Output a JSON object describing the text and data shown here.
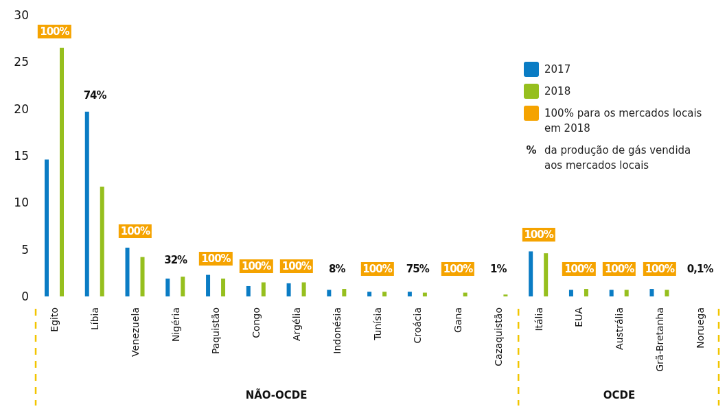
{
  "chart_data": {
    "type": "bar",
    "categories": [
      "Egito",
      "Líbia",
      "Venezuela",
      "Nigéria",
      "Paquistão",
      "Congo",
      "Argélia",
      "Indonésia",
      "Tunísia",
      "Croácia",
      "Gana",
      "Cazaquistão",
      "Itália",
      "EUA",
      "Austrália",
      "Grã-Bretanha",
      "Noruega"
    ],
    "series": [
      {
        "name": "2017",
        "color": "#0a7cc4",
        "values": [
          14.6,
          19.7,
          5.2,
          1.9,
          2.3,
          1.1,
          1.4,
          0.7,
          0.5,
          0.5,
          null,
          null,
          4.8,
          0.7,
          0.7,
          0.8,
          null
        ]
      },
      {
        "name": "2018",
        "color": "#96bf1e",
        "values": [
          26.5,
          11.7,
          4.2,
          2.1,
          1.9,
          1.5,
          1.5,
          0.8,
          0.5,
          0.4,
          0.4,
          0.2,
          4.6,
          0.8,
          0.7,
          0.7,
          null
        ]
      }
    ],
    "ylim": [
      0,
      30
    ],
    "yticks": [
      0,
      5,
      10,
      15,
      20,
      25,
      30
    ],
    "grid": false,
    "legend": "top right",
    "annotations": [
      "100%",
      "74%",
      "100%",
      "32%",
      "100%",
      "100%",
      "100%",
      "8%",
      "100%",
      "75%",
      "100%",
      "1%",
      "100%",
      "100%",
      "100%",
      "100%",
      "0,1%",
      "100% para os mercados locais em 2018",
      "% da produção de gás vendida aos mercados locais",
      "NÃO-OCDE",
      "OCDE"
    ]
  }
}
